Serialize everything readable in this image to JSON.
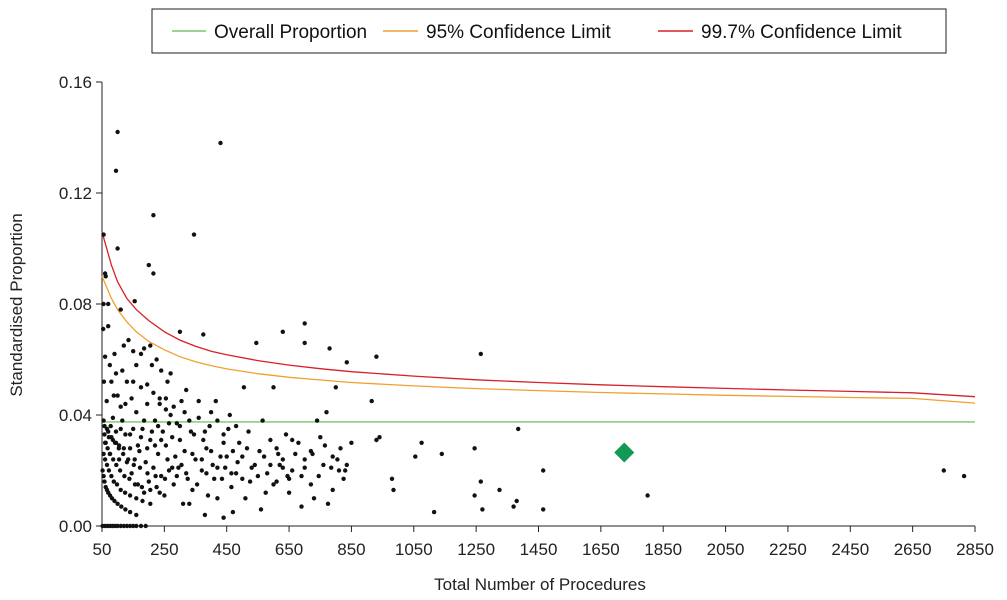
{
  "chart_data": {
    "type": "scatter",
    "xlabel": "Total Number of Procedures",
    "ylabel": "Standardised Proportion",
    "xlim": [
      50,
      2850
    ],
    "ylim": [
      0,
      0.16
    ],
    "x_ticks": [
      50,
      250,
      450,
      650,
      850,
      1050,
      1250,
      1450,
      1650,
      1850,
      2050,
      2250,
      2450,
      2650,
      2850
    ],
    "x_tick_labels": [
      "50",
      "250",
      "450",
      "650",
      "850",
      "1050",
      "1250",
      "1450",
      "1650",
      "1850",
      "2050",
      "2250",
      "2450",
      "2650",
      "2850"
    ],
    "y_ticks": [
      0,
      0.04,
      0.08,
      0.12,
      0.16
    ],
    "y_tick_labels": [
      "0.00",
      "0.04",
      "0.08",
      "0.12",
      "0.16"
    ],
    "grid": false,
    "legend_position": "top",
    "legend": [
      {
        "label": "Overall Proportion",
        "color": "#7dc36b"
      },
      {
        "label": "95% Confidence Limit",
        "color": "#f0a030"
      },
      {
        "label": "99.7% Confidence Limit",
        "color": "#d8202a"
      }
    ],
    "overall_proportion": 0.0375,
    "confidence_limits": [
      {
        "name": "95% Confidence Limit",
        "color": "#f0a030",
        "x": [
          50,
          80,
          100,
          130,
          160,
          200,
          250,
          300,
          350,
          400,
          450,
          550,
          650,
          750,
          850,
          1050,
          1250,
          1450,
          1650,
          1850,
          2050,
          2250,
          2450,
          2650,
          2850
        ],
        "y": [
          0.09,
          0.082,
          0.078,
          0.0735,
          0.07,
          0.0665,
          0.0635,
          0.061,
          0.0592,
          0.0578,
          0.0566,
          0.0549,
          0.0536,
          0.0526,
          0.0517,
          0.0505,
          0.0495,
          0.0488,
          0.0481,
          0.0476,
          0.0471,
          0.0467,
          0.0463,
          0.046,
          0.0443
        ]
      },
      {
        "name": "99.7% Confidence Limit",
        "color": "#d8202a",
        "x": [
          50,
          80,
          100,
          130,
          160,
          200,
          250,
          300,
          350,
          400,
          450,
          550,
          650,
          750,
          850,
          1050,
          1250,
          1450,
          1650,
          1850,
          2050,
          2250,
          2450,
          2650,
          2850
        ],
        "y": [
          0.106,
          0.094,
          0.088,
          0.082,
          0.078,
          0.074,
          0.07,
          0.067,
          0.0648,
          0.063,
          0.0617,
          0.0596,
          0.058,
          0.0567,
          0.0556,
          0.054,
          0.0527,
          0.0517,
          0.0509,
          0.0502,
          0.0496,
          0.049,
          0.0485,
          0.048,
          0.0466
        ]
      }
    ],
    "highlight": {
      "x": 1725,
      "y": 0.0265,
      "color": "#119955",
      "shape": "diamond"
    },
    "points": [
      [
        100,
        0.142
      ],
      [
        95,
        0.128
      ],
      [
        100,
        0.1
      ],
      [
        215,
        0.112
      ],
      [
        200,
        0.094
      ],
      [
        215,
        0.091
      ],
      [
        345,
        0.105
      ],
      [
        430,
        0.138
      ],
      [
        55,
        0.105
      ],
      [
        60,
        0.091
      ],
      [
        62,
        0.09
      ],
      [
        55,
        0.08
      ],
      [
        70,
        0.08
      ],
      [
        110,
        0.078
      ],
      [
        155,
        0.081
      ],
      [
        375,
        0.069
      ],
      [
        300,
        0.07
      ],
      [
        700,
        0.073
      ],
      [
        700,
        0.066
      ],
      [
        630,
        0.07
      ],
      [
        780,
        0.064
      ],
      [
        835,
        0.059
      ],
      [
        930,
        0.061
      ],
      [
        1265,
        0.062
      ],
      [
        545,
        0.066
      ],
      [
        505,
        0.05
      ],
      [
        600,
        0.05
      ],
      [
        800,
        0.05
      ],
      [
        915,
        0.045
      ],
      [
        1385,
        0.035
      ],
      [
        930,
        0.031
      ],
      [
        940,
        0.032
      ],
      [
        1075,
        0.03
      ],
      [
        1140,
        0.026
      ],
      [
        1245,
        0.028
      ],
      [
        1265,
        0.016
      ],
      [
        1325,
        0.013
      ],
      [
        1245,
        0.011
      ],
      [
        1270,
        0.006
      ],
      [
        1370,
        0.007
      ],
      [
        1380,
        0.009
      ],
      [
        1465,
        0.02
      ],
      [
        1465,
        0.006
      ],
      [
        1115,
        0.005
      ],
      [
        980,
        0.017
      ],
      [
        985,
        0.013
      ],
      [
        1055,
        0.025
      ],
      [
        1800,
        0.011
      ],
      [
        2750,
        0.02
      ],
      [
        2815,
        0.018
      ],
      [
        850,
        0.03
      ],
      [
        835,
        0.022
      ],
      [
        830,
        0.02
      ],
      [
        815,
        0.028
      ],
      [
        790,
        0.025
      ],
      [
        770,
        0.041
      ],
      [
        750,
        0.032
      ],
      [
        740,
        0.038
      ],
      [
        720,
        0.027
      ],
      [
        700,
        0.024
      ],
      [
        680,
        0.03
      ],
      [
        660,
        0.02
      ],
      [
        640,
        0.033
      ],
      [
        630,
        0.021
      ],
      [
        615,
        0.026
      ],
      [
        600,
        0.015
      ],
      [
        590,
        0.031
      ],
      [
        575,
        0.012
      ],
      [
        565,
        0.038
      ],
      [
        555,
        0.027
      ],
      [
        540,
        0.022
      ],
      [
        525,
        0.016
      ],
      [
        520,
        0.034
      ],
      [
        510,
        0.01
      ],
      [
        500,
        0.025
      ],
      [
        490,
        0.03
      ],
      [
        480,
        0.019
      ],
      [
        470,
        0.027
      ],
      [
        465,
        0.014
      ],
      [
        455,
        0.035
      ],
      [
        445,
        0.021
      ],
      [
        440,
        0.03
      ],
      [
        430,
        0.025
      ],
      [
        420,
        0.01
      ],
      [
        415,
        0.045
      ],
      [
        410,
        0.017
      ],
      [
        405,
        0.022
      ],
      [
        395,
        0.036
      ],
      [
        390,
        0.011
      ],
      [
        385,
        0.028
      ],
      [
        375,
        0.031
      ],
      [
        370,
        0.02
      ],
      [
        360,
        0.045
      ],
      [
        350,
        0.024
      ],
      [
        340,
        0.013
      ],
      [
        335,
        0.034
      ],
      [
        325,
        0.017
      ],
      [
        320,
        0.049
      ],
      [
        315,
        0.027
      ],
      [
        310,
        0.008
      ],
      [
        300,
        0.036
      ],
      [
        295,
        0.021
      ],
      [
        285,
        0.025
      ],
      [
        280,
        0.015
      ],
      [
        270,
        0.04
      ],
      [
        265,
        0.02
      ],
      [
        260,
        0.052
      ],
      [
        255,
        0.029
      ],
      [
        250,
        0.011
      ],
      [
        245,
        0.034
      ],
      [
        240,
        0.018
      ],
      [
        235,
        0.046
      ],
      [
        230,
        0.026
      ],
      [
        225,
        0.014
      ],
      [
        220,
        0.038
      ],
      [
        215,
        0.021
      ],
      [
        210,
        0.058
      ],
      [
        205,
        0.031
      ],
      [
        200,
        0.016
      ],
      [
        195,
        0.044
      ],
      [
        190,
        0.023
      ],
      [
        185,
        0.012
      ],
      [
        180,
        0.035
      ],
      [
        175,
        0.062
      ],
      [
        170,
        0.027
      ],
      [
        165,
        0.015
      ],
      [
        160,
        0.041
      ],
      [
        155,
        0.024
      ],
      [
        150,
        0.052
      ],
      [
        145,
        0.019
      ],
      [
        140,
        0.033
      ],
      [
        135,
        0.067
      ],
      [
        130,
        0.023
      ],
      [
        125,
        0.044
      ],
      [
        120,
        0.028
      ],
      [
        115,
        0.056
      ],
      [
        110,
        0.035
      ],
      [
        105,
        0.024
      ],
      [
        100,
        0.047
      ],
      [
        95,
        0.03
      ],
      [
        90,
        0.062
      ],
      [
        85,
        0.039
      ],
      [
        80,
        0.052
      ],
      [
        75,
        0.026
      ],
      [
        70,
        0.072
      ],
      [
        65,
        0.045
      ],
      [
        60,
        0.061
      ],
      [
        58,
        0.036
      ],
      [
        56,
        0.052
      ],
      [
        54,
        0.071
      ],
      [
        620,
        0.022
      ],
      [
        645,
        0.018
      ],
      [
        660,
        0.031
      ],
      [
        690,
        0.018
      ],
      [
        720,
        0.015
      ],
      [
        760,
        0.022
      ],
      [
        790,
        0.013
      ],
      [
        810,
        0.02
      ],
      [
        825,
        0.017
      ],
      [
        775,
        0.008
      ],
      [
        730,
        0.01
      ],
      [
        690,
        0.007
      ],
      [
        650,
        0.012
      ],
      [
        610,
        0.016
      ],
      [
        580,
        0.019
      ],
      [
        560,
        0.006
      ],
      [
        470,
        0.005
      ],
      [
        440,
        0.003
      ],
      [
        380,
        0.004
      ],
      [
        330,
        0.008
      ],
      [
        480,
        0.036
      ],
      [
        460,
        0.04
      ],
      [
        440,
        0.033
      ],
      [
        420,
        0.038
      ],
      [
        400,
        0.041
      ],
      [
        380,
        0.034
      ],
      [
        360,
        0.039
      ],
      [
        345,
        0.033
      ],
      [
        330,
        0.038
      ],
      [
        315,
        0.041
      ],
      [
        300,
        0.031
      ],
      [
        290,
        0.037
      ],
      [
        275,
        0.032
      ],
      [
        265,
        0.037
      ],
      [
        255,
        0.042
      ],
      [
        240,
        0.031
      ],
      [
        230,
        0.036
      ],
      [
        220,
        0.029
      ],
      [
        210,
        0.034
      ],
      [
        195,
        0.028
      ],
      [
        185,
        0.038
      ],
      [
        175,
        0.032
      ],
      [
        165,
        0.029
      ],
      [
        150,
        0.035
      ],
      [
        140,
        0.028
      ],
      [
        125,
        0.033
      ],
      [
        115,
        0.038
      ],
      [
        105,
        0.029
      ],
      [
        95,
        0.034
      ],
      [
        85,
        0.031
      ],
      [
        78,
        0.036
      ],
      [
        72,
        0.032
      ],
      [
        66,
        0.035
      ],
      [
        62,
        0.03
      ],
      [
        58,
        0.033
      ],
      [
        55,
        0.038
      ],
      [
        52,
        0.02
      ],
      [
        55,
        0.018
      ],
      [
        58,
        0.016
      ],
      [
        62,
        0.014
      ],
      [
        66,
        0.013
      ],
      [
        70,
        0.012
      ],
      [
        76,
        0.011
      ],
      [
        82,
        0.01
      ],
      [
        90,
        0.009
      ],
      [
        100,
        0.008
      ],
      [
        112,
        0.007
      ],
      [
        125,
        0.006
      ],
      [
        140,
        0.005
      ],
      [
        160,
        0.004
      ],
      [
        55,
        0.026
      ],
      [
        60,
        0.024
      ],
      [
        66,
        0.022
      ],
      [
        72,
        0.02
      ],
      [
        80,
        0.018
      ],
      [
        88,
        0.016
      ],
      [
        98,
        0.015
      ],
      [
        110,
        0.013
      ],
      [
        124,
        0.012
      ],
      [
        140,
        0.011
      ],
      [
        160,
        0.01
      ],
      [
        180,
        0.009
      ],
      [
        205,
        0.008
      ],
      [
        60,
        0.03
      ],
      [
        68,
        0.028
      ],
      [
        76,
        0.026
      ],
      [
        86,
        0.024
      ],
      [
        96,
        0.022
      ],
      [
        108,
        0.02
      ],
      [
        122,
        0.018
      ],
      [
        138,
        0.017
      ],
      [
        156,
        0.015
      ],
      [
        178,
        0.014
      ],
      [
        205,
        0.013
      ],
      [
        235,
        0.012
      ],
      [
        70,
        0.034
      ],
      [
        80,
        0.032
      ],
      [
        92,
        0.03
      ],
      [
        104,
        0.028
      ],
      [
        118,
        0.026
      ],
      [
        134,
        0.024
      ],
      [
        152,
        0.022
      ],
      [
        172,
        0.021
      ],
      [
        196,
        0.019
      ],
      [
        222,
        0.018
      ],
      [
        252,
        0.017
      ],
      [
        52,
        0.0
      ],
      [
        60,
        0.0
      ],
      [
        68,
        0.0
      ],
      [
        76,
        0.0
      ],
      [
        84,
        0.0
      ],
      [
        92,
        0.0
      ],
      [
        100,
        0.0
      ],
      [
        110,
        0.0
      ],
      [
        120,
        0.0
      ],
      [
        130,
        0.0
      ],
      [
        140,
        0.0
      ],
      [
        150,
        0.0
      ],
      [
        160,
        0.0
      ],
      [
        175,
        0.0
      ],
      [
        190,
        0.0
      ],
      [
        260,
        0.024
      ],
      [
        275,
        0.021
      ],
      [
        290,
        0.018
      ],
      [
        305,
        0.022
      ],
      [
        320,
        0.019
      ],
      [
        340,
        0.026
      ],
      [
        355,
        0.015
      ],
      [
        370,
        0.024
      ],
      [
        385,
        0.019
      ],
      [
        400,
        0.027
      ],
      [
        420,
        0.021
      ],
      [
        435,
        0.017
      ],
      [
        450,
        0.025
      ],
      [
        465,
        0.019
      ],
      [
        485,
        0.023
      ],
      [
        500,
        0.017
      ],
      [
        515,
        0.028
      ],
      [
        530,
        0.021
      ],
      [
        550,
        0.018
      ],
      [
        570,
        0.025
      ],
      [
        590,
        0.022
      ],
      [
        610,
        0.028
      ],
      [
        630,
        0.024
      ],
      [
        650,
        0.017
      ],
      [
        670,
        0.026
      ],
      [
        700,
        0.021
      ],
      [
        725,
        0.026
      ],
      [
        745,
        0.018
      ],
      [
        765,
        0.029
      ],
      [
        785,
        0.021
      ],
      [
        805,
        0.024
      ],
      [
        120,
        0.065
      ],
      [
        150,
        0.063
      ],
      [
        185,
        0.064
      ],
      [
        205,
        0.065
      ],
      [
        225,
        0.06
      ],
      [
        240,
        0.056
      ],
      [
        270,
        0.055
      ],
      [
        160,
        0.058
      ],
      [
        130,
        0.052
      ],
      [
        95,
        0.055
      ],
      [
        75,
        0.058
      ],
      [
        88,
        0.047
      ],
      [
        110,
        0.043
      ],
      [
        145,
        0.046
      ],
      [
        175,
        0.05
      ],
      [
        195,
        0.051
      ],
      [
        215,
        0.048
      ],
      [
        235,
        0.044
      ],
      [
        255,
        0.046
      ],
      [
        280,
        0.043
      ],
      [
        305,
        0.045
      ]
    ]
  }
}
